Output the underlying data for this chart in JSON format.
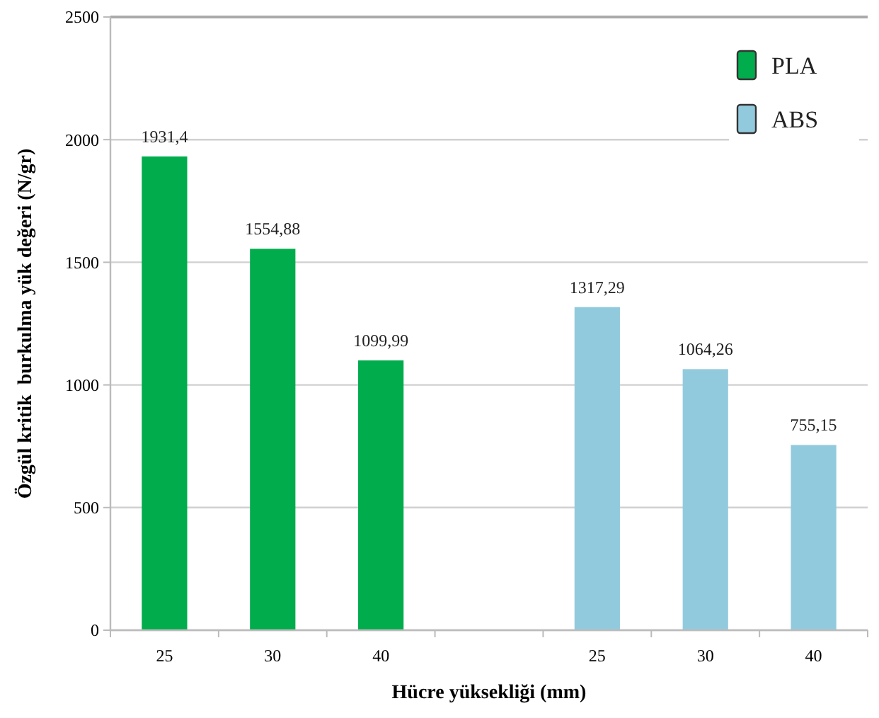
{
  "chart_data": {
    "type": "bar",
    "xlabel": "Hücre yüksekliği (mm)",
    "ylabel": "Özgül kritik  burkulma yük değeri (N/gr)",
    "categories": [
      "25",
      "30",
      "40",
      null,
      "25",
      "30",
      "40"
    ],
    "series": [
      {
        "name": "PLA",
        "color": "#00ac4c",
        "values": [
          1931.4,
          1554.88,
          1099.99,
          null,
          null,
          null,
          null
        ],
        "value_labels": [
          "1931,4",
          "1554,88",
          "1099,99",
          null,
          null,
          null,
          null
        ]
      },
      {
        "name": "ABS",
        "color": "#92cadd",
        "values": [
          null,
          null,
          null,
          null,
          1317.29,
          1064.26,
          755.15
        ],
        "value_labels": [
          null,
          null,
          null,
          null,
          "1317,29",
          "1064,26",
          "755,15"
        ]
      }
    ],
    "ylim": [
      0,
      2500
    ],
    "yticks": [
      0,
      500,
      1000,
      1500,
      2000,
      2500
    ],
    "grid": "y",
    "legend": "top right"
  }
}
